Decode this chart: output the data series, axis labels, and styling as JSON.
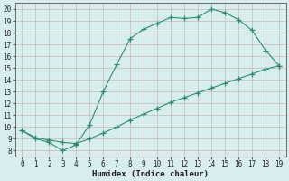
{
  "xlabel": "Humidex (Indice chaleur)",
  "bg_color": "#d8eeee",
  "grid_color": "#c8b8b8",
  "line_color": "#2e8b72",
  "upper_x": [
    0,
    1,
    2,
    3,
    4,
    5,
    6,
    7,
    8,
    9,
    10,
    11,
    12,
    13,
    14,
    15,
    16,
    17,
    18,
    19
  ],
  "upper_y": [
    9.7,
    9.0,
    8.7,
    8.0,
    8.5,
    10.2,
    13.0,
    15.3,
    17.5,
    18.3,
    18.8,
    19.3,
    19.2,
    19.3,
    20.0,
    19.7,
    19.1,
    18.2,
    16.5,
    15.2
  ],
  "lower_x": [
    0,
    1,
    2,
    3,
    4,
    5,
    6,
    7,
    8,
    9,
    10,
    11,
    12,
    13,
    14,
    15,
    16,
    17,
    18,
    19
  ],
  "lower_y": [
    9.7,
    9.1,
    8.9,
    8.7,
    8.6,
    9.0,
    9.5,
    10.0,
    10.6,
    11.1,
    11.6,
    12.1,
    12.5,
    12.9,
    13.3,
    13.7,
    14.1,
    14.5,
    14.9,
    15.2
  ],
  "xlim": [
    -0.5,
    19.5
  ],
  "ylim": [
    7.5,
    20.5
  ],
  "xticks": [
    0,
    1,
    2,
    3,
    4,
    5,
    6,
    7,
    8,
    9,
    10,
    11,
    12,
    13,
    14,
    15,
    16,
    17,
    18,
    19
  ],
  "yticks": [
    8,
    9,
    10,
    11,
    12,
    13,
    14,
    15,
    16,
    17,
    18,
    19,
    20
  ],
  "tick_fontsize": 5.5,
  "xlabel_fontsize": 6.5
}
